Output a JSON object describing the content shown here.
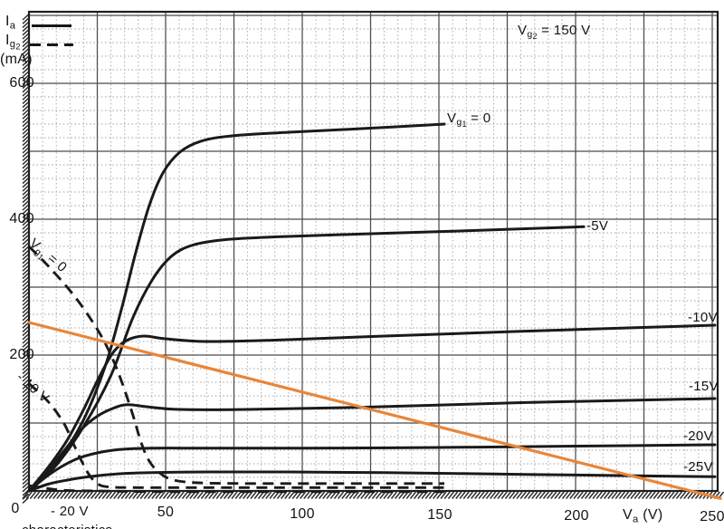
{
  "legend": {
    "ia": {
      "main": "I",
      "sub": "a"
    },
    "ig2": {
      "main": "I",
      "sub": "g",
      "sub2": "2"
    },
    "unit": "(mA)"
  },
  "note_vg2": {
    "main": "V",
    "sub": "g",
    "sub2": "2",
    "rest": " = 150 V"
  },
  "axes": {
    "y_ticks": [
      "600",
      "400",
      "200"
    ],
    "x_ticks": [
      "0",
      "50",
      "100",
      "150",
      "200",
      "250"
    ],
    "x_axis_label": {
      "main": "V",
      "sub": "a",
      "rest": " (V)"
    }
  },
  "curve_labels": {
    "vg1_zero_solid": {
      "main": "V",
      "sub": "g",
      "sub2": "1",
      "rest": " = 0"
    },
    "vg1_zero_dashed": {
      "main": "V",
      "sub": "g",
      "sub2": "1",
      "rest": " = 0"
    },
    "m5": "-5V",
    "m10": "-10V",
    "m15": "-15V",
    "m20": "-20V",
    "m25": "-25V",
    "dashed_m10": "- 10 V",
    "dashed_m20": "- 20 V"
  },
  "caption": {
    "cropped": "characteristics"
  },
  "colors": {
    "ink": "#1a1a1a",
    "load_line": "#e8863a",
    "grid_minor": "#a6a6a6",
    "grid_major": "#4b4b4b"
  },
  "chart_data": {
    "type": "line",
    "title": "",
    "xlabel": "Va (V)",
    "ylabel": "Ia, Ig2 (mA)",
    "condition": "Vg2 = 150 V",
    "xlim": [
      0,
      250
    ],
    "ylim": [
      0,
      705
    ],
    "x_major_step": 25,
    "x_minor_step": 5,
    "y_major_step": 100,
    "y_minor_step": 20,
    "series": [
      {
        "name": "Ia, Vg1 = 0",
        "quantity": "Ia",
        "vg1": 0,
        "style": "solid",
        "points": [
          [
            0,
            0
          ],
          [
            10,
            40
          ],
          [
            20,
            105
          ],
          [
            28,
            185
          ],
          [
            34,
            270
          ],
          [
            39,
            350
          ],
          [
            44,
            420
          ],
          [
            49,
            468
          ],
          [
            55,
            498
          ],
          [
            63,
            515
          ],
          [
            75,
            523
          ],
          [
            95,
            528
          ],
          [
            120,
            533
          ],
          [
            152,
            540
          ]
        ]
      },
      {
        "name": "Ia, Vg1 = -5V",
        "quantity": "Ia",
        "vg1": -5,
        "style": "solid",
        "points": [
          [
            0,
            0
          ],
          [
            10,
            38
          ],
          [
            20,
            95
          ],
          [
            30,
            170
          ],
          [
            38,
            255
          ],
          [
            45,
            310
          ],
          [
            52,
            345
          ],
          [
            60,
            362
          ],
          [
            72,
            370
          ],
          [
            90,
            374
          ],
          [
            120,
            378
          ],
          [
            160,
            383
          ],
          [
            203,
            389
          ]
        ]
      },
      {
        "name": "Ia, Vg1 = -10V",
        "quantity": "Ia",
        "vg1": -10,
        "style": "solid",
        "points": [
          [
            0,
            0
          ],
          [
            8,
            40
          ],
          [
            14,
            75
          ],
          [
            20,
            120
          ],
          [
            26,
            170
          ],
          [
            31,
            205
          ],
          [
            36,
            222
          ],
          [
            42,
            228
          ],
          [
            50,
            224
          ],
          [
            65,
            220
          ],
          [
            90,
            222
          ],
          [
            130,
            228
          ],
          [
            180,
            235
          ],
          [
            251,
            244
          ]
        ]
      },
      {
        "name": "Ia, Vg1 = -15V",
        "quantity": "Ia",
        "vg1": -15,
        "style": "solid",
        "points": [
          [
            0,
            0
          ],
          [
            7,
            30
          ],
          [
            13,
            60
          ],
          [
            19,
            90
          ],
          [
            25,
            110
          ],
          [
            31,
            122
          ],
          [
            36,
            127
          ],
          [
            43,
            124
          ],
          [
            55,
            120
          ],
          [
            80,
            120
          ],
          [
            120,
            123
          ],
          [
            180,
            130
          ],
          [
            251,
            136
          ]
        ]
      },
      {
        "name": "Ia, Vg1 = -20V",
        "quantity": "Ia",
        "vg1": -20,
        "style": "solid",
        "points": [
          [
            0,
            0
          ],
          [
            6,
            20
          ],
          [
            12,
            36
          ],
          [
            18,
            48
          ],
          [
            25,
            56
          ],
          [
            33,
            61
          ],
          [
            45,
            63
          ],
          [
            65,
            63
          ],
          [
            100,
            63
          ],
          [
            150,
            64
          ],
          [
            200,
            66
          ],
          [
            251,
            68
          ]
        ]
      },
      {
        "name": "Ia, Vg1 = -25V",
        "quantity": "Ia",
        "vg1": -25,
        "style": "solid",
        "points": [
          [
            0,
            0
          ],
          [
            7,
            10
          ],
          [
            14,
            16
          ],
          [
            22,
            21
          ],
          [
            32,
            25
          ],
          [
            45,
            27
          ],
          [
            65,
            28
          ],
          [
            95,
            28
          ],
          [
            130,
            27
          ],
          [
            170,
            25
          ],
          [
            210,
            23
          ],
          [
            251,
            21
          ]
        ]
      },
      {
        "name": "Ig2, Vg1 = 0",
        "quantity": "Ig2",
        "vg1": 0,
        "style": "dashed",
        "points": [
          [
            0,
            360
          ],
          [
            8,
            327
          ],
          [
            17,
            285
          ],
          [
            25,
            238
          ],
          [
            30,
            200
          ],
          [
            34,
            160
          ],
          [
            38,
            112
          ],
          [
            41,
            72
          ],
          [
            44,
            44
          ],
          [
            48,
            26
          ],
          [
            53,
            16
          ],
          [
            62,
            12
          ],
          [
            80,
            11
          ],
          [
            110,
            11
          ],
          [
            152,
            11
          ]
        ]
      },
      {
        "name": "Ig2, Vg1 = -10V",
        "quantity": "Ig2",
        "vg1": -10,
        "style": "dashed",
        "points": [
          [
            0,
            158
          ],
          [
            5,
            140
          ],
          [
            9,
            122
          ],
          [
            13,
            98
          ],
          [
            16,
            72
          ],
          [
            19,
            46
          ],
          [
            22,
            24
          ],
          [
            25,
            11
          ],
          [
            29,
            6
          ],
          [
            40,
            5
          ],
          [
            70,
            5
          ],
          [
            110,
            5
          ],
          [
            152,
            5
          ]
        ]
      },
      {
        "name": "Ig2, Vg1 = -20V",
        "quantity": "Ig2",
        "vg1": -20,
        "style": "dashed",
        "points": [
          [
            0,
            8
          ],
          [
            6,
            4
          ],
          [
            13,
            1
          ],
          [
            25,
            0
          ],
          [
            50,
            -1
          ],
          [
            90,
            -1
          ],
          [
            130,
            -1
          ],
          [
            152,
            -1
          ]
        ]
      }
    ],
    "load_line": {
      "name": "load line",
      "points": [
        [
          0,
          248
        ],
        [
          253,
          -11
        ]
      ]
    }
  }
}
